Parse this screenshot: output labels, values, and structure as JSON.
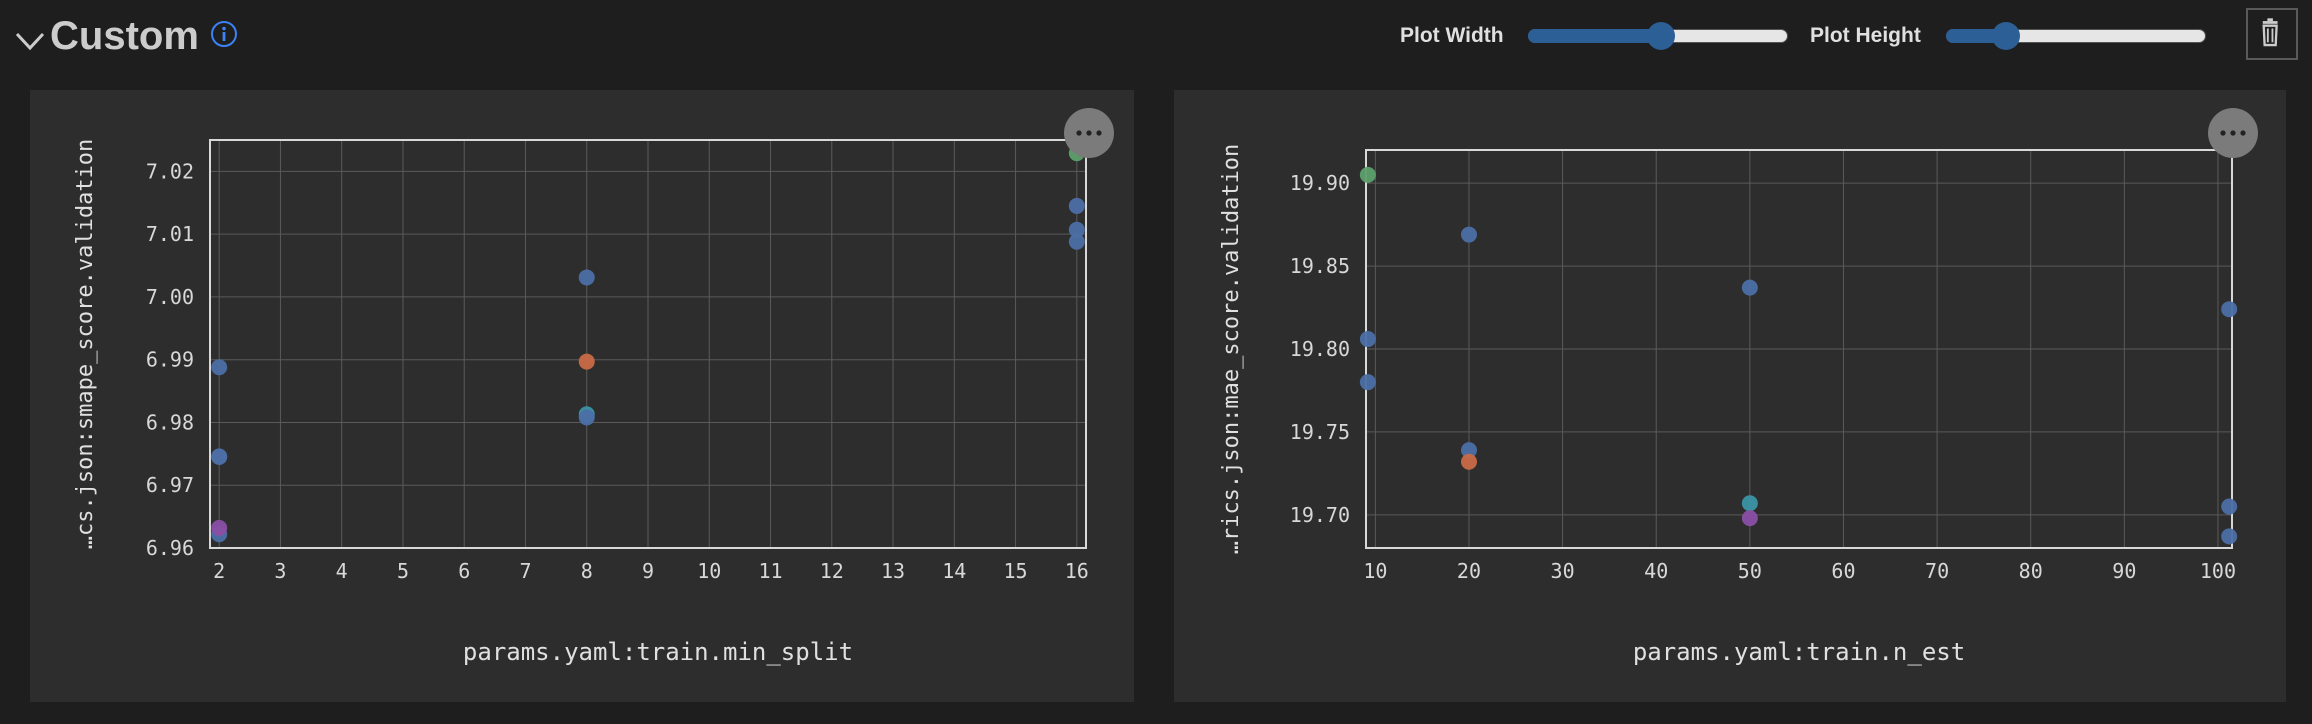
{
  "header": {
    "title": "Custom",
    "info_icon": "info-icon",
    "collapse_icon": "chevron-down-icon",
    "plot_width_label": "Plot Width",
    "plot_width_value": 0.51,
    "plot_height_label": "Plot Height",
    "plot_height_value": 0.23,
    "trash_icon": "trash-icon",
    "accent_color": "#2c5f96"
  },
  "chart_data": [
    {
      "type": "scatter",
      "xlabel": "params.yaml:train.min_split",
      "ylabel": "…cs.json:smape_score.validation",
      "xlim": [
        1.85,
        16.15
      ],
      "ylim": [
        6.96,
        7.025
      ],
      "xticks": [
        2,
        3,
        4,
        5,
        6,
        7,
        8,
        9,
        10,
        11,
        12,
        13,
        14,
        15,
        16
      ],
      "yticks": [
        6.96,
        6.97,
        6.98,
        6.99,
        7.0,
        7.01,
        7.02
      ],
      "ytick_labels": [
        "6.96",
        "6.97",
        "6.98",
        "6.99",
        "7.00",
        "7.01",
        "7.02"
      ],
      "grid": true,
      "points": [
        {
          "x": 2,
          "y": 6.9888,
          "color": "#4c6fa5"
        },
        {
          "x": 2,
          "y": 6.9745,
          "color": "#4c6fa5"
        },
        {
          "x": 2,
          "y": 6.9746,
          "color": "#4c6fa5"
        },
        {
          "x": 2,
          "y": 6.9622,
          "color": "#4c6fa5"
        },
        {
          "x": 2,
          "y": 6.9632,
          "color": "#8a4fa5"
        },
        {
          "x": 8,
          "y": 7.0031,
          "color": "#4c6fa5"
        },
        {
          "x": 8,
          "y": 6.9897,
          "color": "#c96a47"
        },
        {
          "x": 8,
          "y": 6.9813,
          "color": "#3c93a6"
        },
        {
          "x": 8,
          "y": 6.9808,
          "color": "#4c6fa5"
        },
        {
          "x": 16,
          "y": 7.0229,
          "color": "#5da06b"
        },
        {
          "x": 16,
          "y": 7.0145,
          "color": "#4c6fa5"
        },
        {
          "x": 16,
          "y": 7.0107,
          "color": "#4c6fa5"
        },
        {
          "x": 16,
          "y": 7.0088,
          "color": "#4c6fa5"
        }
      ]
    },
    {
      "type": "scatter",
      "xlabel": "params.yaml:train.n_est",
      "ylabel": "…rics.json:mae_score.validation",
      "xlim": [
        9,
        101.5
      ],
      "ylim": [
        19.68,
        19.92
      ],
      "xticks": [
        10,
        20,
        30,
        40,
        50,
        60,
        70,
        80,
        90,
        100
      ],
      "yticks": [
        19.7,
        19.75,
        19.8,
        19.85,
        19.9
      ],
      "ytick_labels": [
        "19.70",
        "19.75",
        "19.80",
        "19.85",
        "19.90"
      ],
      "grid": true,
      "points": [
        {
          "x": 9.2,
          "y": 19.905,
          "color": "#5da06b"
        },
        {
          "x": 9.2,
          "y": 19.806,
          "color": "#4c6fa5"
        },
        {
          "x": 9.2,
          "y": 19.78,
          "color": "#4c6fa5"
        },
        {
          "x": 20,
          "y": 19.869,
          "color": "#4c6fa5"
        },
        {
          "x": 20,
          "y": 19.739,
          "color": "#4c6fa5"
        },
        {
          "x": 20,
          "y": 19.732,
          "color": "#c96a47"
        },
        {
          "x": 50,
          "y": 19.837,
          "color": "#4c6fa5"
        },
        {
          "x": 50,
          "y": 19.707,
          "color": "#3c93a6"
        },
        {
          "x": 50,
          "y": 19.698,
          "color": "#8a4fa5"
        },
        {
          "x": 101.2,
          "y": 19.824,
          "color": "#4c6fa5"
        },
        {
          "x": 101.2,
          "y": 19.705,
          "color": "#4c6fa5"
        },
        {
          "x": 101.2,
          "y": 19.687,
          "color": "#4c6fa5"
        }
      ]
    }
  ]
}
